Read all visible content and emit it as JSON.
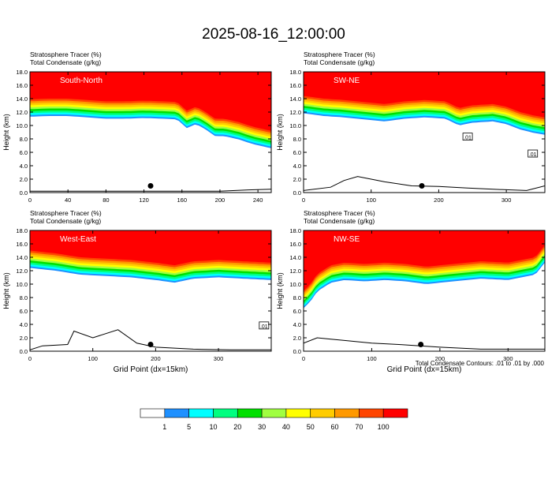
{
  "title": "2025-08-16_12:00:00",
  "chart_data": [
    {
      "type": "heatmap",
      "cross_section": "South-North",
      "label_var1": "Stratosphere Tracer   (%)",
      "label_var2": "Total Condensate   (g/kg)",
      "ylabel": "Height (km)",
      "xlabel": "",
      "xlim": [
        0,
        254
      ],
      "ylim": [
        0,
        18
      ],
      "xticks": [
        0,
        40,
        80,
        120,
        160,
        200,
        240
      ],
      "yticks": [
        "0.0",
        "2.0",
        "4.0",
        "6.0",
        "8.0",
        "10.0",
        "12.0",
        "14.0",
        "16.0",
        "18.0"
      ],
      "tropopause_km": [
        [
          0,
          13.9
        ],
        [
          20,
          14.0
        ],
        [
          40,
          14.0
        ],
        [
          60,
          13.8
        ],
        [
          80,
          13.6
        ],
        [
          100,
          13.6
        ],
        [
          120,
          13.7
        ],
        [
          140,
          13.6
        ],
        [
          155,
          13.5
        ],
        [
          165,
          12.2
        ],
        [
          175,
          12.8
        ],
        [
          185,
          12.0
        ],
        [
          195,
          11.0
        ],
        [
          205,
          11.0
        ],
        [
          220,
          10.5
        ],
        [
          235,
          9.8
        ],
        [
          254,
          9.2
        ]
      ],
      "terrain_km": [
        [
          0,
          0.2
        ],
        [
          80,
          0.2
        ],
        [
          160,
          0.2
        ],
        [
          200,
          0.2
        ],
        [
          230,
          0.4
        ],
        [
          254,
          0.5
        ]
      ],
      "marker": {
        "x": 127,
        "y_km": 1.0
      }
    },
    {
      "type": "heatmap",
      "cross_section": "SW-NE",
      "label_var1": "Stratosphere Tracer   (%)",
      "label_var2": "Total Condensate   (g/kg)",
      "ylabel": "Height (km)",
      "xlabel": "",
      "xlim": [
        0,
        357
      ],
      "ylim": [
        0,
        18
      ],
      "xticks": [
        0,
        100,
        200,
        300
      ],
      "yticks": [
        "0.0",
        "2.0",
        "4.0",
        "6.0",
        "8.0",
        "10.0",
        "12.0",
        "14.0",
        "16.0",
        "18.0"
      ],
      "tropopause_km": [
        [
          0,
          14.4
        ],
        [
          30,
          14.0
        ],
        [
          60,
          13.8
        ],
        [
          90,
          13.5
        ],
        [
          120,
          13.2
        ],
        [
          150,
          13.6
        ],
        [
          180,
          13.8
        ],
        [
          210,
          13.6
        ],
        [
          230,
          12.6
        ],
        [
          250,
          13.0
        ],
        [
          280,
          13.2
        ],
        [
          300,
          12.8
        ],
        [
          320,
          12.0
        ],
        [
          340,
          11.5
        ],
        [
          357,
          11.2
        ]
      ],
      "terrain_km": [
        [
          0,
          0.3
        ],
        [
          40,
          0.8
        ],
        [
          60,
          1.8
        ],
        [
          80,
          2.4
        ],
        [
          100,
          2.0
        ],
        [
          120,
          1.6
        ],
        [
          160,
          1.0
        ],
        [
          200,
          0.9
        ],
        [
          240,
          0.7
        ],
        [
          280,
          0.5
        ],
        [
          330,
          0.3
        ],
        [
          357,
          1.0
        ]
      ],
      "marker": {
        "x": 175,
        "y_km": 1.0
      },
      "contour_labels": [
        ".01",
        ".01"
      ]
    },
    {
      "type": "heatmap",
      "cross_section": "West-East",
      "label_var1": "Stratosphere Tracer   (%)",
      "label_var2": "Total Condensate   (g/kg)",
      "ylabel": "Height (km)",
      "xlabel": "Grid Point (dx=15km)",
      "xlim": [
        0,
        384
      ],
      "ylim": [
        0,
        18
      ],
      "xticks": [
        0,
        100,
        200,
        300
      ],
      "yticks": [
        "0.0",
        "2.0",
        "4.0",
        "6.0",
        "8.0",
        "10.0",
        "12.0",
        "14.0",
        "16.0",
        "18.0"
      ],
      "tropopause_km": [
        [
          0,
          15.0
        ],
        [
          40,
          14.6
        ],
        [
          80,
          14.0
        ],
        [
          120,
          13.8
        ],
        [
          160,
          13.6
        ],
        [
          200,
          13.2
        ],
        [
          230,
          12.8
        ],
        [
          260,
          13.4
        ],
        [
          300,
          13.6
        ],
        [
          340,
          13.4
        ],
        [
          384,
          13.2
        ]
      ],
      "terrain_km": [
        [
          0,
          0.2
        ],
        [
          20,
          0.8
        ],
        [
          60,
          1.0
        ],
        [
          70,
          3.0
        ],
        [
          100,
          2.0
        ],
        [
          140,
          3.2
        ],
        [
          170,
          1.2
        ],
        [
          200,
          0.6
        ],
        [
          260,
          0.3
        ],
        [
          320,
          0.2
        ],
        [
          384,
          0.2
        ]
      ],
      "marker": {
        "x": 192,
        "y_km": 1.0
      },
      "contour_labels": [
        ".01"
      ]
    },
    {
      "type": "heatmap",
      "cross_section": "NW-SE",
      "label_var1": "Stratosphere Tracer   (%)",
      "label_var2": "Total Condensate   (g/kg)",
      "ylabel": "Height (km)",
      "xlabel": "Grid Point (dx=15km)",
      "xlim": [
        0,
        354
      ],
      "ylim": [
        0,
        18
      ],
      "xticks": [
        0,
        100,
        200,
        300
      ],
      "yticks": [
        "0.0",
        "2.0",
        "4.0",
        "6.0",
        "8.0",
        "10.0",
        "12.0",
        "14.0",
        "16.0",
        "18.0"
      ],
      "tropopause_km": [
        [
          0,
          9.0
        ],
        [
          10,
          10.0
        ],
        [
          20,
          11.5
        ],
        [
          40,
          12.8
        ],
        [
          60,
          13.2
        ],
        [
          90,
          13.0
        ],
        [
          120,
          13.2
        ],
        [
          150,
          13.0
        ],
        [
          180,
          12.6
        ],
        [
          220,
          13.0
        ],
        [
          260,
          13.4
        ],
        [
          300,
          13.2
        ],
        [
          340,
          14.0
        ],
        [
          354,
          15.8
        ]
      ],
      "terrain_km": [
        [
          0,
          1.2
        ],
        [
          20,
          2.0
        ],
        [
          40,
          1.8
        ],
        [
          60,
          1.6
        ],
        [
          100,
          1.2
        ],
        [
          140,
          1.0
        ],
        [
          200,
          0.6
        ],
        [
          260,
          0.3
        ],
        [
          354,
          0.3
        ]
      ],
      "marker": {
        "x": 172,
        "y_km": 1.0
      }
    }
  ],
  "contour_note": "Total Condensate Contours: .01 to .01 by .000",
  "colorbar": {
    "labels": [
      "1",
      "5",
      "10",
      "20",
      "30",
      "40",
      "50",
      "60",
      "70",
      "100"
    ],
    "colors": [
      "#ffffff",
      "#1e90ff",
      "#00ffff",
      "#00ff80",
      "#00e000",
      "#a0ff40",
      "#ffff00",
      "#ffcc00",
      "#ff9900",
      "#ff4400",
      "#ff0000"
    ]
  }
}
